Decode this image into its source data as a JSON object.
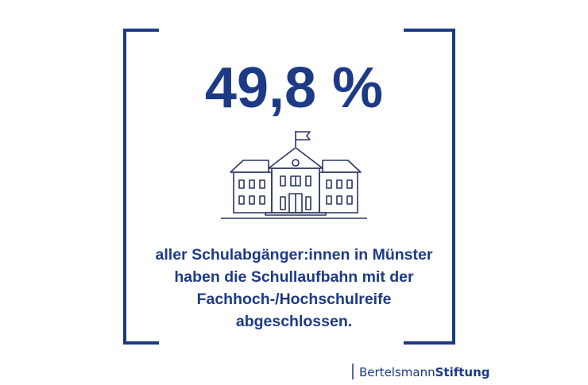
{
  "headline": "49,8 %",
  "description": [
    "aller Schulabgänger:innen in Münster",
    "haben die Schullaufbahn mit der",
    "Fachhoch-/Hochschulreife",
    "abgeschlossen."
  ],
  "logo": {
    "first": "Bertelsmann",
    "second": "Stiftung"
  }
}
